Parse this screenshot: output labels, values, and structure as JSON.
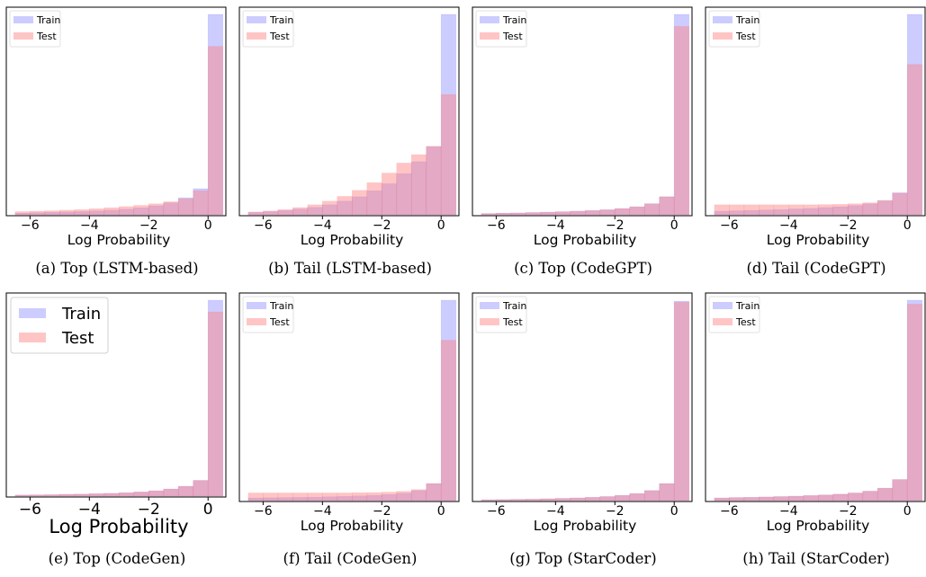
{
  "colors": {
    "train": "#7f7fff",
    "test": "#ff7f7f",
    "train_alpha": 0.4,
    "test_alpha": 0.45,
    "frame": "#000000"
  },
  "chart_data": [
    {
      "type": "histogram",
      "caption": "(a) Top (LSTM-based)",
      "xlabel": "Log Probability",
      "xticks": [
        "−6",
        "−4",
        "−2",
        "0"
      ],
      "xlim": [
        -6.8,
        0.6
      ],
      "legend": [
        "Train",
        "Test"
      ],
      "legend_position": "top-left",
      "bin_edges": [
        -6.5,
        -6.0,
        -5.5,
        -5.0,
        -4.5,
        -4.0,
        -3.5,
        -3.0,
        -2.5,
        -2.0,
        -1.5,
        -1.0,
        -0.5,
        0.0
      ],
      "series": [
        {
          "name": "Train",
          "values": [
            0.008,
            0.01,
            0.012,
            0.014,
            0.016,
            0.019,
            0.023,
            0.028,
            0.035,
            0.045,
            0.06,
            0.085,
            0.13,
            1.0
          ]
        },
        {
          "name": "Test",
          "values": [
            0.016,
            0.018,
            0.02,
            0.023,
            0.026,
            0.03,
            0.035,
            0.041,
            0.047,
            0.055,
            0.065,
            0.08,
            0.12,
            0.84
          ]
        }
      ]
    },
    {
      "type": "histogram",
      "caption": "(b) Tail (LSTM-based)",
      "xlabel": "Log Probability",
      "xticks": [
        "−6",
        "−4",
        "−2",
        "0"
      ],
      "xlim": [
        -6.8,
        0.6
      ],
      "legend": [
        "Train",
        "Test"
      ],
      "legend_position": "top-left",
      "bin_edges": [
        -6.5,
        -6.0,
        -5.5,
        -5.0,
        -4.5,
        -4.0,
        -3.5,
        -3.0,
        -2.5,
        -2.0,
        -1.5,
        -1.0,
        -0.5,
        0.0
      ],
      "series": [
        {
          "name": "Train",
          "values": [
            0.012,
            0.016,
            0.021,
            0.028,
            0.037,
            0.05,
            0.068,
            0.09,
            0.12,
            0.155,
            0.205,
            0.265,
            0.34,
            1.0
          ]
        },
        {
          "name": "Test",
          "values": [
            0.014,
            0.019,
            0.026,
            0.036,
            0.05,
            0.068,
            0.092,
            0.122,
            0.16,
            0.208,
            0.258,
            0.3,
            0.342,
            0.6
          ]
        }
      ]
    },
    {
      "type": "histogram",
      "caption": "(c) Top (CodeGPT)",
      "xlabel": "Log Probability",
      "xticks": [
        "−6",
        "−4",
        "−2",
        "0"
      ],
      "xlim": [
        -6.8,
        0.6
      ],
      "legend": [
        "Train",
        "Test"
      ],
      "legend_position": "top-left",
      "bin_edges": [
        -6.5,
        -6.0,
        -5.5,
        -5.0,
        -4.5,
        -4.0,
        -3.5,
        -3.0,
        -2.5,
        -2.0,
        -1.5,
        -1.0,
        -0.5,
        0.0
      ],
      "series": [
        {
          "name": "Train",
          "values": [
            0.006,
            0.008,
            0.009,
            0.011,
            0.013,
            0.015,
            0.018,
            0.021,
            0.025,
            0.031,
            0.04,
            0.055,
            0.09,
            1.0
          ]
        },
        {
          "name": "Test",
          "values": [
            0.006,
            0.008,
            0.009,
            0.011,
            0.013,
            0.015,
            0.018,
            0.021,
            0.025,
            0.031,
            0.04,
            0.055,
            0.09,
            0.94
          ]
        }
      ]
    },
    {
      "type": "histogram",
      "caption": "(d) Tail (CodeGPT)",
      "xlabel": "Log Probability",
      "xticks": [
        "−6",
        "−4",
        "−2",
        "0"
      ],
      "xlim": [
        -6.8,
        0.6
      ],
      "legend": [
        "Train",
        "Test"
      ],
      "legend_position": "top-left",
      "bin_edges": [
        -6.5,
        -6.0,
        -5.5,
        -5.0,
        -4.5,
        -4.0,
        -3.5,
        -3.0,
        -2.5,
        -2.0,
        -1.5,
        -1.0,
        -0.5,
        0.0
      ],
      "series": [
        {
          "name": "Train",
          "values": [
            0.018,
            0.02,
            0.022,
            0.024,
            0.026,
            0.029,
            0.032,
            0.036,
            0.04,
            0.046,
            0.055,
            0.07,
            0.11,
            1.0
          ]
        },
        {
          "name": "Test",
          "values": [
            0.05,
            0.05,
            0.05,
            0.05,
            0.05,
            0.05,
            0.05,
            0.051,
            0.052,
            0.055,
            0.06,
            0.072,
            0.108,
            0.75
          ]
        }
      ]
    },
    {
      "type": "histogram",
      "caption": "(e) Top (CodeGen)",
      "xlabel": "Log Probability",
      "xticks": [
        "−6",
        "−4",
        "−2",
        "0"
      ],
      "xlim": [
        -6.8,
        0.6
      ],
      "legend": [
        "Train",
        "Test"
      ],
      "legend_position": "top-left",
      "legend_large": true,
      "bin_edges": [
        -6.5,
        -6.0,
        -5.5,
        -5.0,
        -4.5,
        -4.0,
        -3.5,
        -3.0,
        -2.5,
        -2.0,
        -1.5,
        -1.0,
        -0.5,
        0.0
      ],
      "series": [
        {
          "name": "Train",
          "values": [
            0.005,
            0.006,
            0.007,
            0.009,
            0.01,
            0.012,
            0.014,
            0.017,
            0.021,
            0.027,
            0.036,
            0.05,
            0.08,
            1.0
          ]
        },
        {
          "name": "Test",
          "values": [
            0.005,
            0.006,
            0.007,
            0.009,
            0.01,
            0.012,
            0.014,
            0.017,
            0.021,
            0.027,
            0.036,
            0.05,
            0.08,
            0.94
          ]
        }
      ]
    },
    {
      "type": "histogram",
      "caption": "(f) Tail (CodeGen)",
      "xlabel": "Log Probability",
      "xticks": [
        "−6",
        "−4",
        "−2",
        "0"
      ],
      "xlim": [
        -6.8,
        0.6
      ],
      "legend": [
        "Train",
        "Test"
      ],
      "legend_position": "top-left",
      "bin_edges": [
        -6.5,
        -6.0,
        -5.5,
        -5.0,
        -4.5,
        -4.0,
        -3.5,
        -3.0,
        -2.5,
        -2.0,
        -1.5,
        -1.0,
        -0.5,
        0.0
      ],
      "series": [
        {
          "name": "Train",
          "values": [
            0.013,
            0.014,
            0.015,
            0.016,
            0.017,
            0.019,
            0.021,
            0.023,
            0.026,
            0.03,
            0.037,
            0.05,
            0.085,
            1.0
          ]
        },
        {
          "name": "Test",
          "values": [
            0.038,
            0.038,
            0.038,
            0.038,
            0.038,
            0.038,
            0.038,
            0.039,
            0.04,
            0.042,
            0.046,
            0.055,
            0.085,
            0.8
          ]
        }
      ]
    },
    {
      "type": "histogram",
      "caption": "(g) Top (StarCoder)",
      "xlabel": "Log Probability",
      "xticks": [
        "−6",
        "−4",
        "−2",
        "0"
      ],
      "xlim": [
        -6.8,
        0.6
      ],
      "legend": [
        "Train",
        "Test"
      ],
      "legend_position": "top-left",
      "bin_edges": [
        -6.5,
        -6.0,
        -5.5,
        -5.0,
        -4.5,
        -4.0,
        -3.5,
        -3.0,
        -2.5,
        -2.0,
        -1.5,
        -1.0,
        -0.5,
        0.0
      ],
      "series": [
        {
          "name": "Train",
          "values": [
            0.004,
            0.005,
            0.006,
            0.007,
            0.009,
            0.011,
            0.013,
            0.016,
            0.02,
            0.026,
            0.035,
            0.05,
            0.085,
            0.995
          ]
        },
        {
          "name": "Test",
          "values": [
            0.004,
            0.005,
            0.006,
            0.007,
            0.009,
            0.011,
            0.013,
            0.016,
            0.02,
            0.026,
            0.035,
            0.05,
            0.085,
            0.99
          ]
        }
      ]
    },
    {
      "type": "histogram",
      "caption": "(h) Tail (StarCoder)",
      "xlabel": "Log Probability",
      "xticks": [
        "−6",
        "−4",
        "−2",
        "0"
      ],
      "xlim": [
        -6.8,
        0.6
      ],
      "legend": [
        "Train",
        "Test"
      ],
      "legend_position": "top-left",
      "bin_edges": [
        -6.5,
        -6.0,
        -5.5,
        -5.0,
        -4.5,
        -4.0,
        -3.5,
        -3.0,
        -2.5,
        -2.0,
        -1.5,
        -1.0,
        -0.5,
        0.0
      ],
      "series": [
        {
          "name": "Train",
          "values": [
            0.013,
            0.015,
            0.016,
            0.018,
            0.02,
            0.022,
            0.025,
            0.028,
            0.032,
            0.038,
            0.047,
            0.062,
            0.105,
            1.0
          ]
        },
        {
          "name": "Test",
          "values": [
            0.013,
            0.015,
            0.016,
            0.018,
            0.02,
            0.022,
            0.025,
            0.028,
            0.032,
            0.038,
            0.047,
            0.062,
            0.105,
            0.98
          ]
        }
      ]
    }
  ]
}
